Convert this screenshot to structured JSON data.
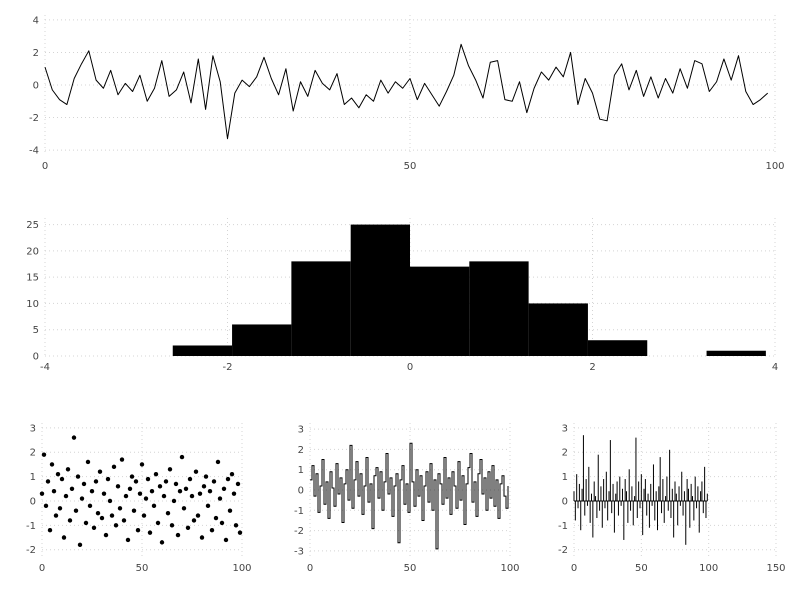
{
  "figure": {
    "background": "#ffffff",
    "description": "matplotlib-style figure with five subplots: random-noise line plot, histogram, scatter plot, step plot and stem plot"
  },
  "style": {
    "series_color": "#000000",
    "grid_color": "#d4d4d4",
    "tick_label_color": "#454545",
    "background": "#ffffff",
    "grid": "dotted"
  },
  "chart_data": [
    {
      "id": "noise-line",
      "type": "line",
      "title": "",
      "xlabel": "",
      "ylabel": "",
      "xlim": [
        0,
        100
      ],
      "ylim": [
        -4.3,
        4.3
      ],
      "xticks": [
        0,
        50,
        100
      ],
      "yticks": [
        -4,
        -2,
        0,
        2,
        4
      ],
      "x_is_index": true,
      "y": [
        1.1,
        -0.3,
        -0.9,
        -1.2,
        0.4,
        1.3,
        2.1,
        0.3,
        -0.2,
        0.9,
        -0.6,
        0.1,
        -0.4,
        0.6,
        -1.0,
        -0.2,
        1.5,
        -0.7,
        -0.3,
        0.8,
        -1.1,
        1.6,
        -1.5,
        1.8,
        0.2,
        -3.3,
        -0.5,
        0.3,
        -0.1,
        0.5,
        1.7,
        0.4,
        -0.6,
        1.0,
        -1.6,
        0.2,
        -0.7,
        0.9,
        0.1,
        -0.3,
        0.7,
        -1.2,
        -0.8,
        -1.4,
        -0.6,
        -1.0,
        0.3,
        -0.5,
        0.2,
        -0.2,
        0.4,
        -0.9,
        0.1,
        -0.6,
        -1.3,
        -0.4,
        0.6,
        2.5,
        1.2,
        0.3,
        -0.8,
        1.4,
        1.5,
        -0.9,
        -1.0,
        0.2,
        -1.7,
        -0.2,
        0.8,
        0.3,
        1.1,
        0.5,
        2.0,
        -1.2,
        0.4,
        -0.5,
        -2.1,
        -2.2,
        0.6,
        1.3,
        -0.3,
        0.9,
        -0.7,
        0.5,
        -0.8,
        0.4,
        -0.5,
        1.0,
        -0.2,
        1.5,
        1.3,
        -0.4,
        0.2,
        1.6,
        0.3,
        1.8,
        -0.4,
        -1.2,
        -0.9,
        -0.5
      ]
    },
    {
      "id": "histogram",
      "type": "histogram",
      "title": "",
      "xlabel": "",
      "ylabel": "",
      "xlim": [
        -4,
        4
      ],
      "ylim": [
        0,
        26.25
      ],
      "xticks": [
        -4,
        -2,
        0,
        2,
        4
      ],
      "yticks": [
        0,
        5,
        10,
        15,
        20,
        25
      ],
      "bin_edges": [
        -2.6,
        -1.95,
        -1.3,
        -0.65,
        0.0,
        0.65,
        1.3,
        1.95,
        2.6,
        3.25,
        3.9
      ],
      "counts": [
        2,
        6,
        18,
        25,
        17,
        18,
        10,
        3,
        0,
        1
      ]
    },
    {
      "id": "scatter",
      "type": "scatter",
      "title": "",
      "xlabel": "",
      "ylabel": "",
      "xlim": [
        0,
        100
      ],
      "ylim": [
        -2.3,
        3.2
      ],
      "xticks": [
        0,
        50,
        100
      ],
      "yticks": [
        -2,
        -1,
        0,
        1,
        2,
        3
      ],
      "x_is_index": true,
      "y": [
        0.3,
        1.9,
        -0.2,
        0.8,
        -1.2,
        1.5,
        0.4,
        -0.6,
        1.1,
        -0.3,
        0.9,
        -1.5,
        0.2,
        1.3,
        -0.8,
        0.5,
        2.6,
        -0.4,
        1.0,
        -1.8,
        0.1,
        0.7,
        -0.9,
        1.6,
        -0.2,
        0.4,
        -1.1,
        0.8,
        -0.5,
        1.2,
        -0.7,
        0.3,
        -1.4,
        0.9,
        0.0,
        -0.6,
        1.4,
        -1.0,
        0.6,
        -0.3,
        1.7,
        -0.8,
        0.2,
        -1.6,
        0.5,
        1.0,
        -0.4,
        0.8,
        -1.2,
        0.3,
        1.5,
        -0.6,
        0.1,
        0.9,
        -1.3,
        0.4,
        -0.2,
        1.1,
        -0.9,
        0.6,
        -1.7,
        0.2,
        0.8,
        -0.5,
        1.3,
        -1.0,
        0.0,
        0.7,
        -1.4,
        0.4,
        1.8,
        -0.3,
        0.5,
        -1.1,
        0.9,
        0.2,
        -0.8,
        1.2,
        -0.6,
        0.3,
        -1.5,
        0.6,
        1.0,
        -0.2,
        0.4,
        -1.2,
        0.8,
        -0.7,
        1.6,
        0.1,
        -0.9,
        0.5,
        -1.6,
        0.9,
        -0.4,
        1.1,
        0.3,
        -1.0,
        0.7,
        -1.3
      ]
    },
    {
      "id": "step",
      "type": "step",
      "title": "",
      "xlabel": "",
      "ylabel": "",
      "xlim": [
        0,
        100
      ],
      "ylim": [
        -3.3,
        3.3
      ],
      "xticks": [
        0,
        50,
        100
      ],
      "yticks": [
        -3,
        -2,
        -1,
        0,
        1,
        2,
        3
      ],
      "x_is_index": true,
      "y": [
        0.5,
        1.2,
        -0.3,
        0.8,
        -1.1,
        0.2,
        1.5,
        -0.7,
        0.4,
        -1.4,
        0.9,
        0.1,
        -0.8,
        1.3,
        -0.2,
        0.6,
        -1.6,
        0.3,
        1.0,
        -0.5,
        2.2,
        -0.9,
        0.5,
        1.4,
        -0.3,
        0.8,
        -1.2,
        0.2,
        1.6,
        -0.6,
        0.3,
        -1.9,
        0.7,
        1.1,
        -0.4,
        0.9,
        -1.0,
        0.4,
        1.8,
        -0.2,
        0.6,
        -1.3,
        0.2,
        0.8,
        -2.6,
        0.5,
        1.2,
        -0.7,
        0.3,
        -1.1,
        2.3,
        0.4,
        -0.8,
        1.0,
        -0.3,
        0.7,
        -1.5,
        0.2,
        0.9,
        -0.6,
        1.3,
        -1.0,
        0.5,
        -2.9,
        0.8,
        0.3,
        -0.7,
        1.6,
        -0.4,
        0.6,
        -1.2,
        0.9,
        0.2,
        -0.9,
        1.4,
        -0.5,
        0.7,
        -1.7,
        0.3,
        1.1,
        1.8,
        -0.6,
        0.4,
        -1.3,
        0.8,
        1.5,
        -0.2,
        0.6,
        -1.0,
        0.9,
        -0.4,
        1.2,
        -0.8,
        0.5,
        -1.4,
        0.3,
        0.7,
        -0.3,
        -0.9,
        0.2
      ]
    },
    {
      "id": "stem",
      "type": "stem",
      "title": "",
      "xlabel": "",
      "ylabel": "",
      "xlim": [
        0,
        150
      ],
      "ylim": [
        -2.3,
        3.2
      ],
      "xticks": [
        0,
        50,
        100,
        150
      ],
      "yticks": [
        -2,
        -1,
        0,
        1,
        2,
        3
      ],
      "x_is_index": true,
      "y": [
        0.4,
        -0.8,
        1.1,
        -0.3,
        0.7,
        -1.2,
        0.5,
        2.7,
        -0.6,
        0.9,
        -0.2,
        1.4,
        -0.9,
        0.3,
        -1.5,
        0.8,
        0.2,
        -0.7,
        1.9,
        -0.4,
        0.6,
        -1.1,
        0.9,
        -0.3,
        1.2,
        -0.8,
        0.4,
        2.5,
        -0.5,
        0.7,
        -1.3,
        0.3,
        0.8,
        -0.6,
        1.0,
        -0.2,
        0.5,
        -1.6,
        0.9,
        0.4,
        -0.9,
        1.3,
        -0.4,
        0.6,
        -1.0,
        0.2,
        2.6,
        -0.7,
        0.8,
        -0.3,
        1.1,
        -1.4,
        0.5,
        0.9,
        -0.6,
        0.3,
        -1.1,
        0.7,
        -0.2,
        1.5,
        -0.8,
        0.4,
        -1.2,
        0.6,
        1.8,
        -0.5,
        0.9,
        -0.9,
        0.2,
        1.0,
        -0.4,
        2.1,
        -0.7,
        0.5,
        -1.5,
        0.8,
        0.3,
        -1.0,
        0.6,
        -0.2,
        1.2,
        -0.6,
        0.4,
        -1.8,
        0.9,
        0.5,
        -1.1,
        0.7,
        0.2,
        -0.8,
        1.0,
        -0.3,
        0.6,
        -1.3,
        0.4,
        0.8,
        -0.5,
        1.4,
        -0.7,
        0.3
      ]
    }
  ]
}
